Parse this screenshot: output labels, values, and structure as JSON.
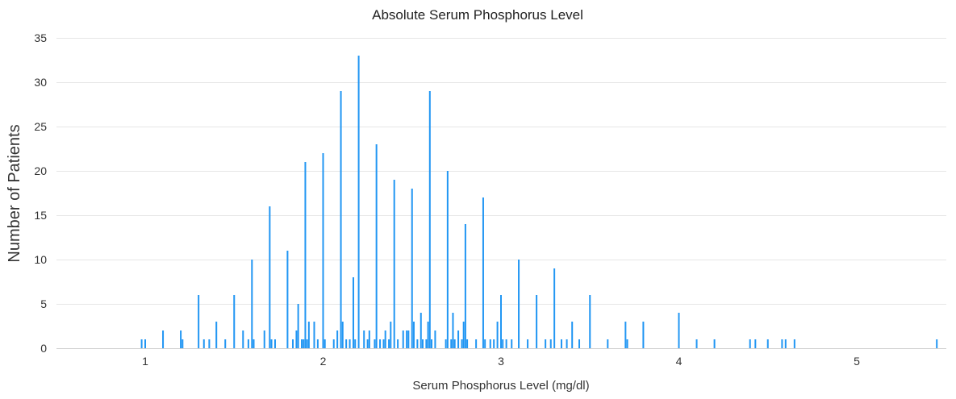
{
  "chart_data": {
    "type": "bar",
    "title": "Absolute Serum Phosphorus Level",
    "xlabel": "Serum Phosphorus Level (mg/dl)",
    "ylabel": "Number of Patients",
    "xlim": [
      0.55,
      5.45
    ],
    "ylim": [
      0,
      35
    ],
    "x_ticks": [
      1,
      2,
      3,
      4,
      5
    ],
    "y_ticks": [
      0,
      5,
      10,
      15,
      20,
      25,
      30,
      35
    ],
    "grid": true,
    "bar_color": "#2196f3",
    "points": [
      {
        "x": 0.98,
        "y": 1
      },
      {
        "x": 1.0,
        "y": 1
      },
      {
        "x": 1.1,
        "y": 2
      },
      {
        "x": 1.2,
        "y": 2
      },
      {
        "x": 1.21,
        "y": 1
      },
      {
        "x": 1.3,
        "y": 6
      },
      {
        "x": 1.33,
        "y": 1
      },
      {
        "x": 1.36,
        "y": 1
      },
      {
        "x": 1.4,
        "y": 3
      },
      {
        "x": 1.45,
        "y": 1
      },
      {
        "x": 1.5,
        "y": 6
      },
      {
        "x": 1.55,
        "y": 2
      },
      {
        "x": 1.58,
        "y": 1
      },
      {
        "x": 1.6,
        "y": 10
      },
      {
        "x": 1.61,
        "y": 1
      },
      {
        "x": 1.67,
        "y": 2
      },
      {
        "x": 1.7,
        "y": 16
      },
      {
        "x": 1.71,
        "y": 1
      },
      {
        "x": 1.73,
        "y": 1
      },
      {
        "x": 1.8,
        "y": 11
      },
      {
        "x": 1.83,
        "y": 1
      },
      {
        "x": 1.85,
        "y": 2
      },
      {
        "x": 1.86,
        "y": 5
      },
      {
        "x": 1.88,
        "y": 1
      },
      {
        "x": 1.89,
        "y": 1
      },
      {
        "x": 1.9,
        "y": 21
      },
      {
        "x": 1.91,
        "y": 1
      },
      {
        "x": 1.92,
        "y": 3
      },
      {
        "x": 1.95,
        "y": 3
      },
      {
        "x": 1.97,
        "y": 1
      },
      {
        "x": 2.0,
        "y": 22
      },
      {
        "x": 2.01,
        "y": 1
      },
      {
        "x": 2.06,
        "y": 1
      },
      {
        "x": 2.08,
        "y": 2
      },
      {
        "x": 2.1,
        "y": 29
      },
      {
        "x": 2.11,
        "y": 3
      },
      {
        "x": 2.13,
        "y": 1
      },
      {
        "x": 2.15,
        "y": 1
      },
      {
        "x": 2.17,
        "y": 8
      },
      {
        "x": 2.18,
        "y": 1
      },
      {
        "x": 2.2,
        "y": 33
      },
      {
        "x": 2.23,
        "y": 2
      },
      {
        "x": 2.25,
        "y": 1
      },
      {
        "x": 2.26,
        "y": 2
      },
      {
        "x": 2.29,
        "y": 1
      },
      {
        "x": 2.3,
        "y": 23
      },
      {
        "x": 2.32,
        "y": 1
      },
      {
        "x": 2.34,
        "y": 1
      },
      {
        "x": 2.35,
        "y": 2
      },
      {
        "x": 2.37,
        "y": 1
      },
      {
        "x": 2.38,
        "y": 3
      },
      {
        "x": 2.4,
        "y": 19
      },
      {
        "x": 2.42,
        "y": 1
      },
      {
        "x": 2.45,
        "y": 2
      },
      {
        "x": 2.47,
        "y": 2
      },
      {
        "x": 2.48,
        "y": 2
      },
      {
        "x": 2.5,
        "y": 18
      },
      {
        "x": 2.51,
        "y": 3
      },
      {
        "x": 2.53,
        "y": 1
      },
      {
        "x": 2.55,
        "y": 4
      },
      {
        "x": 2.56,
        "y": 1
      },
      {
        "x": 2.58,
        "y": 1
      },
      {
        "x": 2.59,
        "y": 3
      },
      {
        "x": 2.6,
        "y": 29
      },
      {
        "x": 2.61,
        "y": 1
      },
      {
        "x": 2.63,
        "y": 2
      },
      {
        "x": 2.69,
        "y": 1
      },
      {
        "x": 2.7,
        "y": 20
      },
      {
        "x": 2.72,
        "y": 1
      },
      {
        "x": 2.73,
        "y": 4
      },
      {
        "x": 2.74,
        "y": 1
      },
      {
        "x": 2.76,
        "y": 2
      },
      {
        "x": 2.78,
        "y": 1
      },
      {
        "x": 2.79,
        "y": 3
      },
      {
        "x": 2.8,
        "y": 14
      },
      {
        "x": 2.81,
        "y": 1
      },
      {
        "x": 2.86,
        "y": 1
      },
      {
        "x": 2.9,
        "y": 17
      },
      {
        "x": 2.91,
        "y": 1
      },
      {
        "x": 2.94,
        "y": 1
      },
      {
        "x": 2.96,
        "y": 1
      },
      {
        "x": 2.98,
        "y": 3
      },
      {
        "x": 3.0,
        "y": 6
      },
      {
        "x": 3.01,
        "y": 1
      },
      {
        "x": 3.03,
        "y": 1
      },
      {
        "x": 3.06,
        "y": 1
      },
      {
        "x": 3.1,
        "y": 10
      },
      {
        "x": 3.15,
        "y": 1
      },
      {
        "x": 3.2,
        "y": 6
      },
      {
        "x": 3.25,
        "y": 1
      },
      {
        "x": 3.28,
        "y": 1
      },
      {
        "x": 3.3,
        "y": 9
      },
      {
        "x": 3.34,
        "y": 1
      },
      {
        "x": 3.37,
        "y": 1
      },
      {
        "x": 3.4,
        "y": 3
      },
      {
        "x": 3.44,
        "y": 1
      },
      {
        "x": 3.5,
        "y": 6
      },
      {
        "x": 3.6,
        "y": 1
      },
      {
        "x": 3.7,
        "y": 3
      },
      {
        "x": 3.71,
        "y": 1
      },
      {
        "x": 3.8,
        "y": 3
      },
      {
        "x": 4.0,
        "y": 4
      },
      {
        "x": 4.1,
        "y": 1
      },
      {
        "x": 4.2,
        "y": 1
      },
      {
        "x": 4.4,
        "y": 1
      },
      {
        "x": 4.43,
        "y": 1
      },
      {
        "x": 4.5,
        "y": 1
      },
      {
        "x": 4.58,
        "y": 1
      },
      {
        "x": 4.6,
        "y": 1
      },
      {
        "x": 4.65,
        "y": 1
      },
      {
        "x": 5.45,
        "y": 1
      }
    ]
  }
}
